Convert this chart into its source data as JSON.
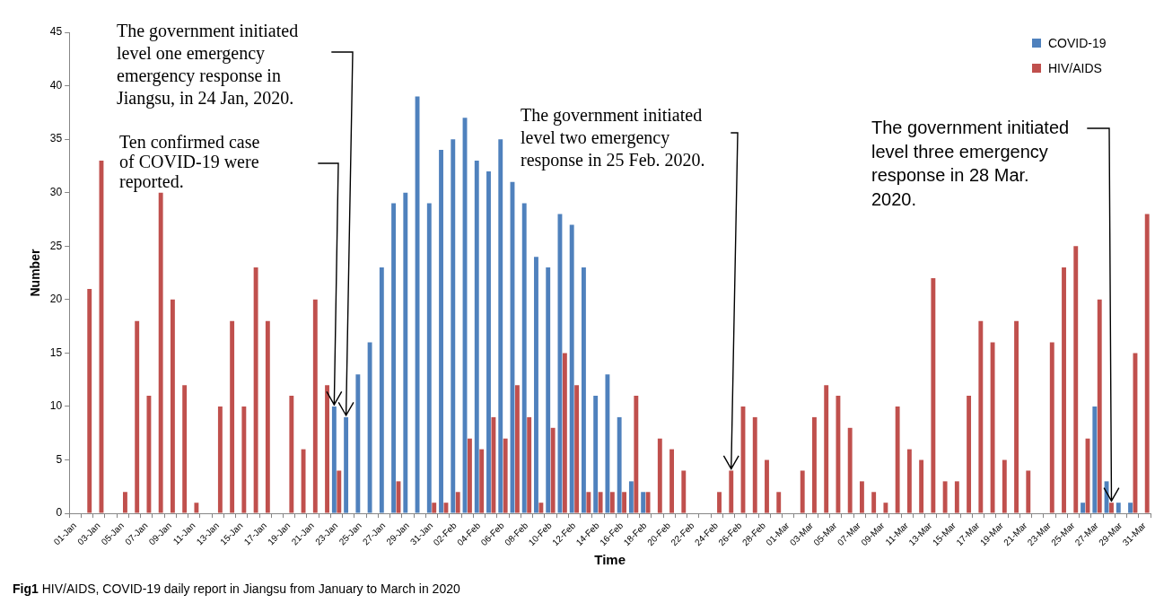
{
  "chart_data": {
    "type": "bar",
    "xlabel": "Time",
    "ylabel": "Number",
    "categories": [
      "01-Jan",
      null,
      "03-Jan",
      null,
      "05-Jan",
      null,
      "07-Jan",
      null,
      "09-Jan",
      null,
      "11-Jan",
      null,
      "13-Jan",
      null,
      "15-Jan",
      null,
      "17-Jan",
      null,
      "19-Jan",
      null,
      "21-Jan",
      null,
      "23-Jan",
      null,
      "25-Jan",
      null,
      "27-Jan",
      null,
      "29-Jan",
      null,
      "31-Jan",
      null,
      "02-Feb",
      null,
      "04-Feb",
      null,
      "06-Feb",
      null,
      "08-Feb",
      null,
      "10-Feb",
      null,
      "12-Feb",
      null,
      "14-Feb",
      null,
      "16-Feb",
      null,
      "18-Feb",
      null,
      "20-Feb",
      null,
      "22-Feb",
      null,
      "24-Feb",
      null,
      "26-Feb",
      null,
      "28-Feb",
      null,
      "01-Mar",
      null,
      "03-Mar",
      null,
      "05-Mar",
      null,
      "07-Mar",
      null,
      "09-Mar",
      null,
      "11-Mar",
      null,
      "13-Mar",
      null,
      "15-Mar",
      null,
      "17-Mar",
      null,
      "19-Mar",
      null,
      "21-Mar",
      null,
      "23-Mar",
      null,
      "25-Mar",
      null,
      "27-Mar",
      null,
      "29-Mar",
      null,
      "31-Mar"
    ],
    "series": [
      {
        "name": "COVID-19",
        "color": "#4f81bd",
        "values": [
          0,
          0,
          0,
          0,
          0,
          0,
          0,
          0,
          0,
          0,
          0,
          0,
          0,
          0,
          0,
          0,
          0,
          0,
          0,
          0,
          0,
          0,
          10,
          9,
          13,
          16,
          23,
          29,
          30,
          39,
          29,
          34,
          35,
          37,
          33,
          32,
          35,
          31,
          29,
          24,
          23,
          28,
          27,
          23,
          11,
          13,
          9,
          3,
          2,
          0,
          0,
          0,
          0,
          0,
          0,
          0,
          0,
          0,
          0,
          0,
          0,
          0,
          0,
          0,
          0,
          0,
          0,
          0,
          0,
          0,
          0,
          0,
          0,
          0,
          0,
          0,
          0,
          0,
          0,
          0,
          0,
          0,
          0,
          0,
          0,
          1,
          10,
          3,
          1,
          1,
          0
        ]
      },
      {
        "name": "HIV/AIDS",
        "color": "#c0504d",
        "values": [
          0,
          21,
          33,
          0,
          2,
          18,
          11,
          30,
          20,
          12,
          1,
          0,
          10,
          18,
          10,
          23,
          18,
          0,
          11,
          6,
          20,
          12,
          4,
          0,
          0,
          0,
          0,
          3,
          0,
          0,
          1,
          1,
          2,
          7,
          6,
          9,
          7,
          12,
          9,
          1,
          8,
          15,
          12,
          2,
          2,
          2,
          2,
          11,
          2,
          7,
          6,
          4,
          0,
          0,
          2,
          4,
          10,
          9,
          5,
          2,
          0,
          4,
          9,
          12,
          11,
          8,
          3,
          2,
          1,
          10,
          6,
          5,
          22,
          3,
          3,
          11,
          18,
          16,
          5,
          18,
          4,
          0,
          16,
          23,
          25,
          7,
          20,
          1,
          0,
          15,
          28
        ]
      }
    ],
    "ylim": [
      0,
      45
    ],
    "yticks": [
      0,
      5,
      10,
      15,
      20,
      25,
      30,
      35,
      40,
      45
    ],
    "grid": false,
    "legend": "top right",
    "annotations": [
      "The government initiated\nlevel one emergency\nemergency response in\nJiangsu, in 24 Jan, 2020.",
      "Ten confirmed case\nof COVID-19 were\nreported.",
      "The government initiated\nlevel two emergency\nresponse in 25 Feb. 2020.",
      "The government initiated\nlevel three emergency\nresponse in 28 Mar.\n2020.",
      "Fig1 HIV/AIDS, COVID-19 daily report in Jiangsu from January to March in 2020"
    ]
  }
}
